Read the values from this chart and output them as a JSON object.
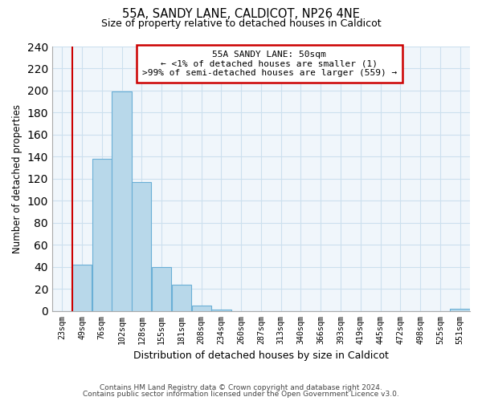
{
  "title": "55A, SANDY LANE, CALDICOT, NP26 4NE",
  "subtitle": "Size of property relative to detached houses in Caldicot",
  "xlabel": "Distribution of detached houses by size in Caldicot",
  "ylabel": "Number of detached properties",
  "footer_line1": "Contains HM Land Registry data © Crown copyright and database right 2024.",
  "footer_line2": "Contains public sector information licensed under the Open Government Licence v3.0.",
  "bins": [
    "23sqm",
    "49sqm",
    "76sqm",
    "102sqm",
    "128sqm",
    "155sqm",
    "181sqm",
    "208sqm",
    "234sqm",
    "260sqm",
    "287sqm",
    "313sqm",
    "340sqm",
    "366sqm",
    "393sqm",
    "419sqm",
    "445sqm",
    "472sqm",
    "498sqm",
    "525sqm",
    "551sqm"
  ],
  "values": [
    0,
    42,
    138,
    199,
    117,
    40,
    24,
    5,
    1,
    0,
    0,
    0,
    0,
    0,
    0,
    0,
    0,
    0,
    0,
    0,
    2
  ],
  "bar_color": "#b8d8ea",
  "bar_edge_color": "#6aafd6",
  "ylim": [
    0,
    240
  ],
  "yticks": [
    0,
    20,
    40,
    60,
    80,
    100,
    120,
    140,
    160,
    180,
    200,
    220,
    240
  ],
  "property_line_color": "#cc0000",
  "annotation_title": "55A SANDY LANE: 50sqm",
  "annotation_line1": "← <1% of detached houses are smaller (1)",
  "annotation_line2": ">99% of semi-detached houses are larger (559) →",
  "annotation_box_color": "#cc0000",
  "annotation_bg": "#ffffff",
  "grid_color": "#cce0ee",
  "bg_color": "#f0f6fb"
}
